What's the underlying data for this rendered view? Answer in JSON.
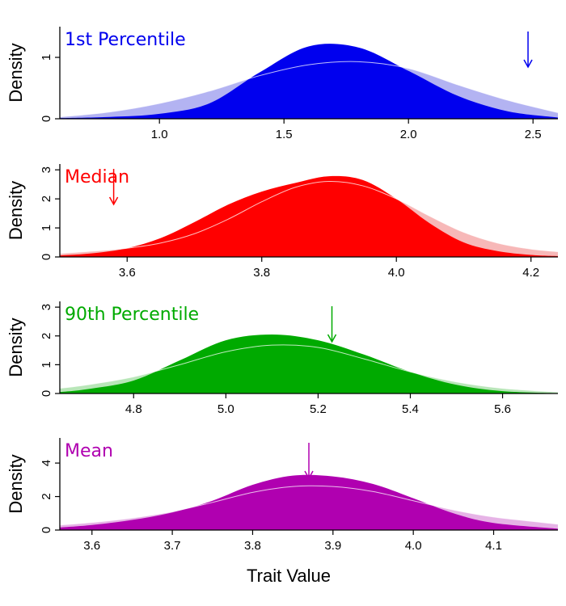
{
  "figure": {
    "xlabel": "Trait Value"
  },
  "chart_data": [
    {
      "type": "area",
      "title": "1st Percentile",
      "color": "#0000ee",
      "light_color": "#b3b3f2",
      "ylabel": "Density",
      "xlim": [
        0.6,
        2.6
      ],
      "ylim": [
        0,
        1.5
      ],
      "xticks": [
        1.0,
        1.5,
        2.0,
        2.5
      ],
      "xtick_labels": [
        "1.0",
        "1.5",
        "2.0",
        "2.5"
      ],
      "yticks": [
        0,
        1
      ],
      "ytick_labels": [
        "0",
        "1"
      ],
      "arrow_x": 2.48,
      "series": [
        {
          "role": "prior",
          "x": [
            0.6,
            0.8,
            1.0,
            1.2,
            1.4,
            1.6,
            1.8,
            2.0,
            2.2,
            2.4,
            2.6
          ],
          "y": [
            0.03,
            0.11,
            0.25,
            0.45,
            0.7,
            0.88,
            0.93,
            0.82,
            0.55,
            0.3,
            0.1
          ]
        },
        {
          "role": "posterior",
          "x": [
            0.6,
            0.8,
            1.0,
            1.2,
            1.4,
            1.6,
            1.8,
            2.0,
            2.2,
            2.4,
            2.6
          ],
          "y": [
            0.01,
            0.03,
            0.08,
            0.25,
            0.75,
            1.18,
            1.16,
            0.78,
            0.37,
            0.12,
            0.02
          ]
        }
      ]
    },
    {
      "type": "area",
      "title": "Median",
      "color": "#ff0000",
      "light_color": "#f7b8b8",
      "ylabel": "Density",
      "xlim": [
        3.5,
        4.24
      ],
      "ylim": [
        0,
        3.2
      ],
      "xticks": [
        3.6,
        3.8,
        4.0,
        4.2
      ],
      "xtick_labels": [
        "3.6",
        "3.8",
        "4.0",
        "4.2"
      ],
      "yticks": [
        0,
        1,
        2,
        3
      ],
      "ytick_labels": [
        "0",
        "1",
        "2",
        "3"
      ],
      "arrow_x": 3.58,
      "series": [
        {
          "role": "prior",
          "x": [
            3.5,
            3.55,
            3.6,
            3.65,
            3.7,
            3.75,
            3.8,
            3.85,
            3.9,
            3.95,
            4.0,
            4.05,
            4.1,
            4.15,
            4.2,
            4.24
          ],
          "y": [
            0.12,
            0.2,
            0.3,
            0.48,
            0.8,
            1.3,
            1.9,
            2.4,
            2.6,
            2.45,
            2.0,
            1.4,
            0.85,
            0.48,
            0.27,
            0.18
          ]
        },
        {
          "role": "posterior",
          "x": [
            3.5,
            3.55,
            3.6,
            3.65,
            3.7,
            3.75,
            3.8,
            3.85,
            3.9,
            3.95,
            4.0,
            4.05,
            4.1,
            4.15,
            4.2,
            4.24
          ],
          "y": [
            0.05,
            0.13,
            0.3,
            0.65,
            1.2,
            1.8,
            2.25,
            2.55,
            2.78,
            2.65,
            2.0,
            1.15,
            0.5,
            0.2,
            0.07,
            0.03
          ]
        }
      ]
    },
    {
      "type": "area",
      "title": "90th Percentile",
      "color": "#00aa00",
      "light_color": "#b8e6b8",
      "ylabel": "Density",
      "xlim": [
        4.64,
        5.72
      ],
      "ylim": [
        0,
        3.2
      ],
      "xticks": [
        4.8,
        5.0,
        5.2,
        5.4,
        5.6
      ],
      "xtick_labels": [
        "4.8",
        "5.0",
        "5.2",
        "5.4",
        "5.6"
      ],
      "yticks": [
        0,
        1,
        2,
        3
      ],
      "ytick_labels": [
        "0",
        "1",
        "2",
        "3"
      ],
      "arrow_x": 5.23,
      "series": [
        {
          "role": "prior",
          "x": [
            4.64,
            4.7,
            4.8,
            4.9,
            5.0,
            5.1,
            5.2,
            5.3,
            5.4,
            5.5,
            5.6,
            5.72
          ],
          "y": [
            0.18,
            0.3,
            0.58,
            1.0,
            1.45,
            1.68,
            1.6,
            1.2,
            0.75,
            0.4,
            0.18,
            0.05
          ]
        },
        {
          "role": "posterior",
          "x": [
            4.64,
            4.7,
            4.8,
            4.9,
            5.0,
            5.1,
            5.2,
            5.3,
            5.4,
            5.5,
            5.6,
            5.72
          ],
          "y": [
            0.05,
            0.15,
            0.45,
            1.15,
            1.85,
            2.05,
            1.85,
            1.35,
            0.75,
            0.3,
            0.08,
            0.01
          ]
        }
      ]
    },
    {
      "type": "area",
      "title": "Mean",
      "color": "#b000b0",
      "light_color": "#e6b3e6",
      "ylabel": "Density",
      "xlim": [
        3.56,
        4.18
      ],
      "ylim": [
        0,
        5.5
      ],
      "xticks": [
        3.6,
        3.7,
        3.8,
        3.9,
        4.0,
        4.1
      ],
      "xtick_labels": [
        "3.6",
        "3.7",
        "3.8",
        "3.9",
        "4.0",
        "4.1"
      ],
      "yticks": [
        0,
        2,
        4
      ],
      "ytick_labels": [
        "0",
        "2",
        "4"
      ],
      "arrow_x": 3.87,
      "series": [
        {
          "role": "prior",
          "x": [
            3.56,
            3.6,
            3.65,
            3.7,
            3.75,
            3.8,
            3.85,
            3.9,
            3.95,
            4.0,
            4.05,
            4.1,
            4.18
          ],
          "y": [
            0.3,
            0.45,
            0.72,
            1.1,
            1.65,
            2.25,
            2.6,
            2.6,
            2.3,
            1.75,
            1.2,
            0.78,
            0.35
          ]
        },
        {
          "role": "posterior",
          "x": [
            3.56,
            3.6,
            3.65,
            3.7,
            3.75,
            3.8,
            3.85,
            3.9,
            3.95,
            4.0,
            4.05,
            4.1,
            4.18
          ],
          "y": [
            0.15,
            0.3,
            0.6,
            1.05,
            1.75,
            2.7,
            3.25,
            3.2,
            2.75,
            1.9,
            1.0,
            0.42,
            0.08
          ]
        }
      ]
    }
  ]
}
